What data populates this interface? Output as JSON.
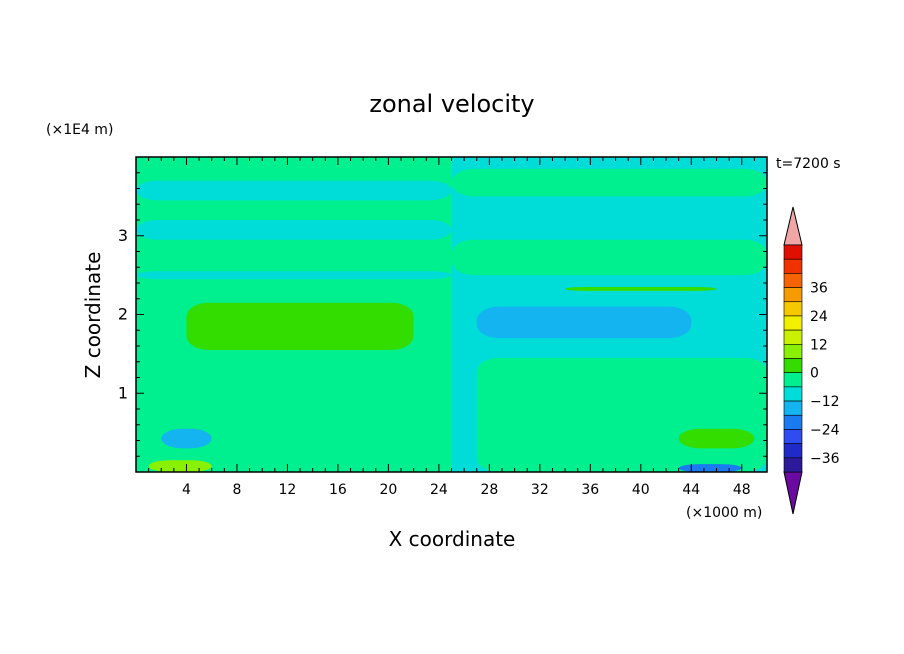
{
  "chart_data": {
    "type": "heatmap",
    "title": "zonal velocity",
    "xlabel": "X coordinate",
    "ylabel": "Z coordinate",
    "x_unit": "(×1000 m)",
    "y_unit": "(×1E4 m)",
    "time_label": "t=7200 s",
    "xlim": [
      0,
      50
    ],
    "ylim": [
      0,
      4
    ],
    "x_ticks": [
      4,
      8,
      12,
      16,
      20,
      24,
      28,
      32,
      36,
      40,
      44,
      48
    ],
    "y_ticks": [
      1,
      2,
      3
    ],
    "grid": false,
    "colorbar": {
      "position": "right",
      "labels": [
        "36",
        "24",
        "12",
        "0",
        "−12",
        "−24",
        "−36"
      ],
      "label_values": [
        36,
        24,
        12,
        0,
        -12,
        -24,
        -36
      ],
      "levels_from": -42,
      "level_step": 6,
      "colors": [
        "#6a0aa0",
        "#2c1a9a",
        "#1f2ac8",
        "#2f4cf0",
        "#1a7af0",
        "#13b4f0",
        "#00dcd8",
        "#00f090",
        "#33dd00",
        "#88f000",
        "#c8f000",
        "#f0f000",
        "#f5c800",
        "#f59a00",
        "#f56400",
        "#f03200",
        "#e01000",
        "#f0a6a6"
      ]
    },
    "regions": [
      {
        "level": 0,
        "x": [
          0,
          50
        ],
        "z": [
          0,
          4
        ],
        "note": "background"
      },
      {
        "level": -6,
        "x": [
          0,
          25
        ],
        "z": [
          3.45,
          3.7
        ]
      },
      {
        "level": -6,
        "x": [
          0,
          25
        ],
        "z": [
          2.95,
          3.2
        ]
      },
      {
        "level": -6,
        "x": [
          0,
          25
        ],
        "z": [
          2.45,
          2.55
        ]
      },
      {
        "level": -6,
        "x": [
          25,
          50
        ],
        "z": [
          0,
          4
        ],
        "note": "right half background"
      },
      {
        "level": 0,
        "x": [
          25,
          50
        ],
        "z": [
          3.5,
          3.85
        ]
      },
      {
        "level": 0,
        "x": [
          25,
          50
        ],
        "z": [
          2.5,
          2.95
        ]
      },
      {
        "level": 0,
        "x": [
          27,
          50
        ],
        "z": [
          0,
          1.45
        ]
      },
      {
        "level": 6,
        "x": [
          4,
          22
        ],
        "z": [
          1.55,
          2.15
        ]
      },
      {
        "level": 6,
        "x": [
          34,
          46
        ],
        "z": [
          2.3,
          2.35
        ]
      },
      {
        "level": -12,
        "x": [
          27,
          44
        ],
        "z": [
          1.7,
          2.1
        ]
      },
      {
        "level": -12,
        "x": [
          2,
          6
        ],
        "z": [
          0.3,
          0.55
        ]
      },
      {
        "level": 6,
        "x": [
          43,
          49
        ],
        "z": [
          0.3,
          0.55
        ]
      },
      {
        "level": 12,
        "x": [
          1,
          6
        ],
        "z": [
          0,
          0.15
        ]
      },
      {
        "level": -18,
        "x": [
          43,
          48
        ],
        "z": [
          0,
          0.1
        ]
      }
    ]
  }
}
